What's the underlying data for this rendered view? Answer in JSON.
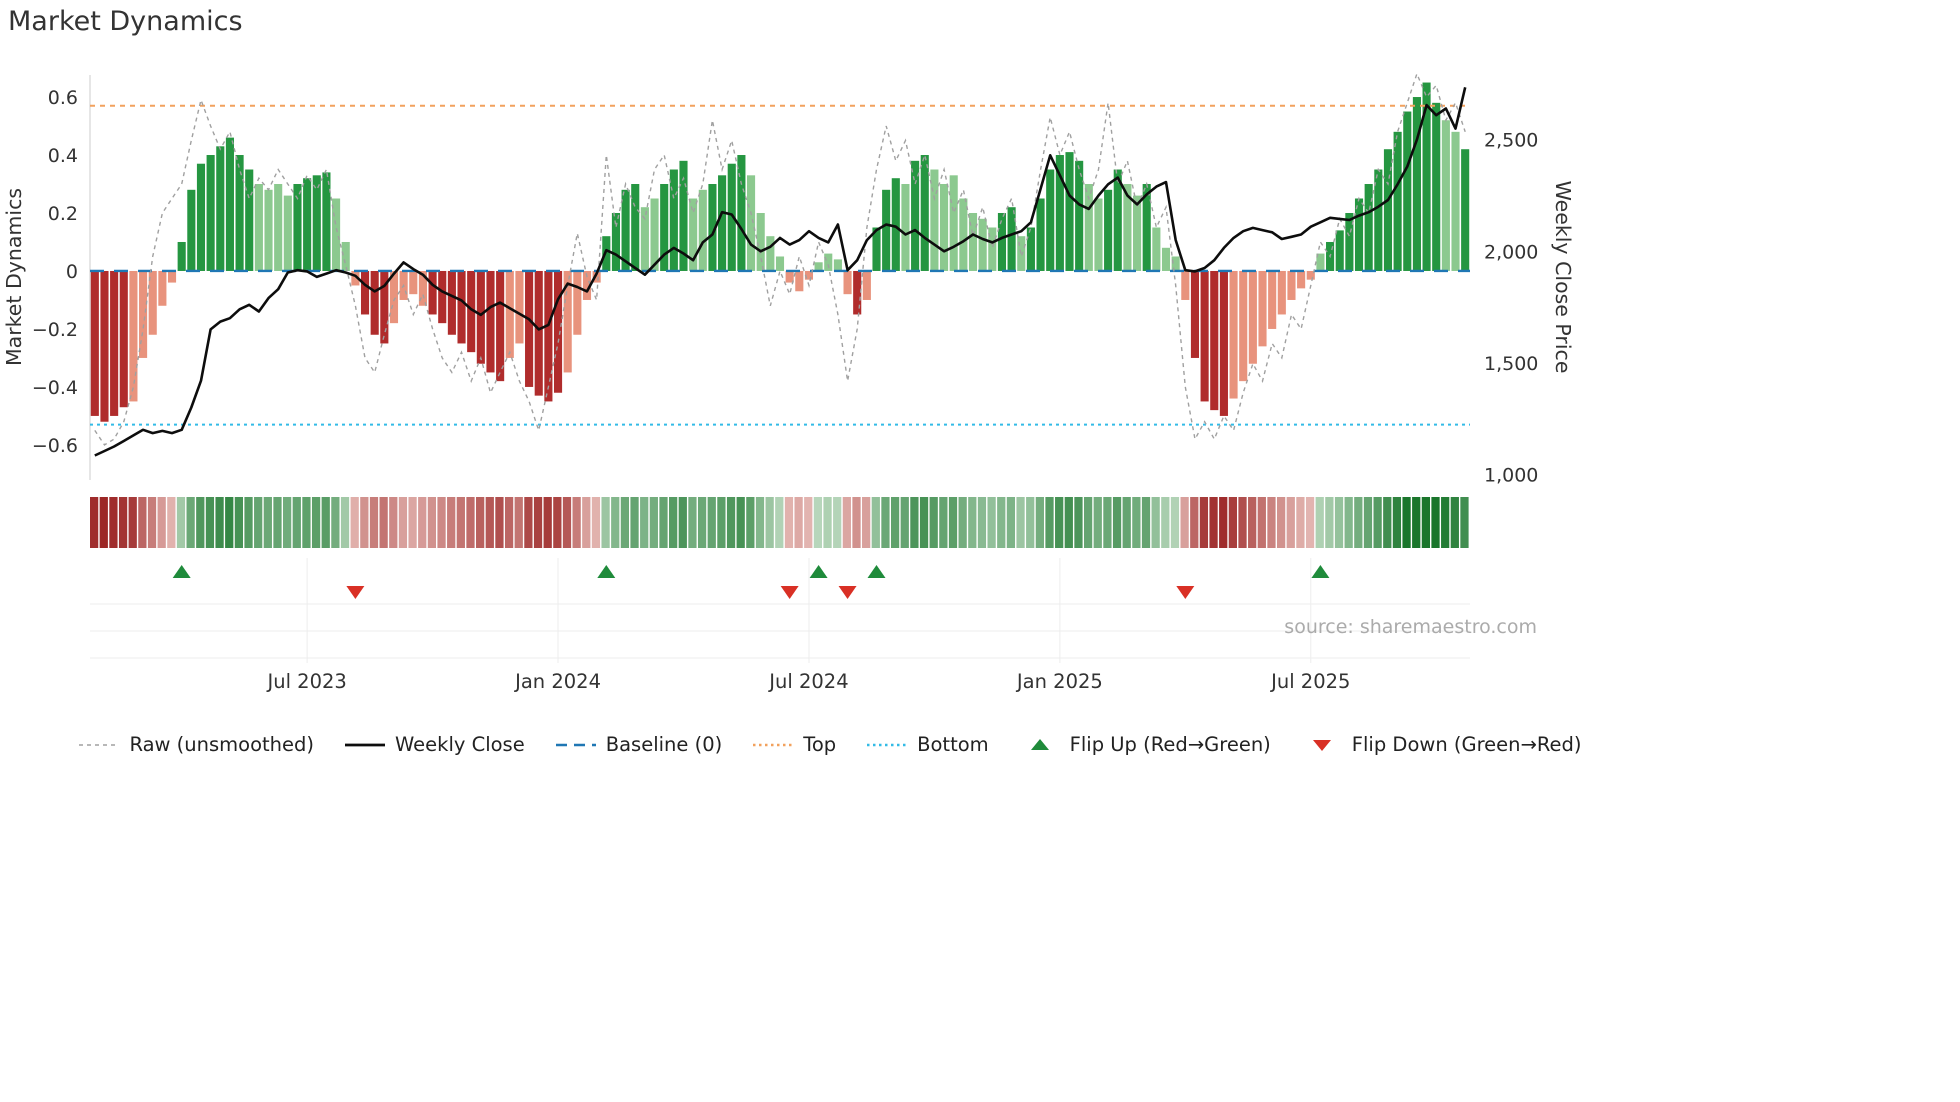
{
  "title": "Market Dynamics",
  "source": "source: sharemaestro.com",
  "axes": {
    "left": {
      "title": "Market Dynamics",
      "ticks": [
        0.6,
        0.4,
        0.2,
        0,
        -0.2,
        -0.4,
        -0.6
      ],
      "tick_labels": [
        "0.6",
        "0.4",
        "0.2",
        "0",
        "−0.2",
        "−0.4",
        "−0.6"
      ]
    },
    "right": {
      "title": "Weekly Close Price",
      "ticks": [
        2500,
        2000,
        1500,
        1000
      ],
      "tick_labels": [
        "2,500",
        "2,000",
        "1,500",
        "1,000"
      ]
    },
    "x": {
      "tick_weeks": [
        22,
        48,
        74,
        100,
        126
      ],
      "tick_labels": [
        "Jul 2023",
        "Jan 2024",
        "Jul 2024",
        "Jan 2025",
        "Jul 2025"
      ]
    }
  },
  "legend": {
    "items": [
      {
        "key": "raw",
        "label": "Raw (unsmoothed)",
        "type": "dashed-line",
        "color": "#a0a0a0"
      },
      {
        "key": "weekly-close",
        "label": "Weekly Close",
        "type": "solid-line",
        "color": "#0d0d0d"
      },
      {
        "key": "baseline",
        "label": "Baseline (0)",
        "type": "long-dash-line",
        "color": "#1f77b4"
      },
      {
        "key": "top",
        "label": "Top",
        "type": "dotted-line",
        "color": "#f2a15d"
      },
      {
        "key": "bottom",
        "label": "Bottom",
        "type": "dotted-line",
        "color": "#33bbe6"
      },
      {
        "key": "flip-up",
        "label": "Flip Up (Red→Green)",
        "type": "triangle-up",
        "color": "#1f8b3b"
      },
      {
        "key": "flip-down",
        "label": "Flip Down (Green→Red)",
        "type": "triangle-down",
        "color": "#d93025"
      }
    ]
  },
  "chart_data": {
    "type": "bar+line weekly combo with heatmap strip and flip markers",
    "baseline": 0,
    "top": 0.57,
    "bottom": -0.53,
    "left_ylim": [
      -0.721,
      0.676
    ],
    "right_ylim": [
      975,
      2790
    ],
    "weeks": 143,
    "oscillator": [
      -0.5,
      -0.52,
      -0.5,
      -0.47,
      -0.45,
      -0.3,
      -0.22,
      -0.12,
      -0.04,
      0.1,
      0.28,
      0.37,
      0.4,
      0.43,
      0.46,
      0.4,
      0.35,
      0.3,
      0.28,
      0.3,
      0.26,
      0.3,
      0.32,
      0.33,
      0.34,
      0.25,
      0.1,
      -0.05,
      -0.15,
      -0.22,
      -0.25,
      -0.18,
      -0.1,
      -0.08,
      -0.12,
      -0.15,
      -0.18,
      -0.22,
      -0.25,
      -0.28,
      -0.32,
      -0.35,
      -0.38,
      -0.3,
      -0.25,
      -0.4,
      -0.43,
      -0.45,
      -0.42,
      -0.35,
      -0.22,
      -0.1,
      -0.04,
      0.12,
      0.2,
      0.28,
      0.3,
      0.22,
      0.25,
      0.3,
      0.35,
      0.38,
      0.25,
      0.28,
      0.3,
      0.33,
      0.37,
      0.4,
      0.33,
      0.2,
      0.12,
      0.05,
      -0.04,
      -0.07,
      -0.03,
      0.03,
      0.06,
      0.04,
      -0.08,
      -0.15,
      -0.1,
      0.15,
      0.28,
      0.32,
      0.3,
      0.38,
      0.4,
      0.35,
      0.3,
      0.33,
      0.25,
      0.2,
      0.18,
      0.15,
      0.2,
      0.22,
      0.12,
      0.15,
      0.25,
      0.35,
      0.4,
      0.41,
      0.38,
      0.3,
      0.25,
      0.28,
      0.35,
      0.3,
      0.26,
      0.3,
      0.15,
      0.08,
      0.05,
      -0.1,
      -0.3,
      -0.45,
      -0.48,
      -0.5,
      -0.44,
      -0.38,
      -0.32,
      -0.26,
      -0.2,
      -0.15,
      -0.1,
      -0.06,
      -0.03,
      0.06,
      0.1,
      0.14,
      0.2,
      0.25,
      0.3,
      0.35,
      0.42,
      0.48,
      0.55,
      0.6,
      0.65,
      0.58,
      0.52,
      0.48,
      0.42
    ],
    "bar_colors": [
      "dr",
      "dr",
      "dr",
      "dr",
      "lr",
      "lr",
      "lr",
      "lr",
      "lr",
      "dg",
      "dg",
      "dg",
      "dg",
      "dg",
      "dg",
      "dg",
      "dg",
      "lg",
      "lg",
      "lg",
      "lg",
      "dg",
      "dg",
      "dg",
      "dg",
      "lg",
      "lg",
      "lr",
      "dr",
      "dr",
      "dr",
      "lr",
      "lr",
      "lr",
      "lr",
      "dr",
      "dr",
      "dr",
      "dr",
      "dr",
      "dr",
      "dr",
      "dr",
      "lr",
      "lr",
      "dr",
      "dr",
      "dr",
      "dr",
      "lr",
      "lr",
      "lr",
      "lr",
      "dg",
      "dg",
      "dg",
      "dg",
      "lg",
      "lg",
      "dg",
      "dg",
      "dg",
      "lg",
      "lg",
      "dg",
      "dg",
      "dg",
      "dg",
      "lg",
      "lg",
      "lg",
      "lg",
      "lr",
      "lr",
      "lr",
      "lg",
      "lg",
      "lg",
      "lr",
      "dr",
      "lr",
      "dg",
      "dg",
      "dg",
      "lg",
      "dg",
      "dg",
      "lg",
      "lg",
      "lg",
      "lg",
      "lg",
      "lg",
      "lg",
      "dg",
      "dg",
      "lg",
      "dg",
      "dg",
      "dg",
      "dg",
      "dg",
      "dg",
      "lg",
      "lg",
      "dg",
      "dg",
      "lg",
      "lg",
      "dg",
      "lg",
      "lg",
      "lg",
      "lr",
      "dr",
      "dr",
      "dr",
      "dr",
      "lr",
      "lr",
      "lr",
      "lr",
      "lr",
      "lr",
      "lr",
      "lr",
      "lr",
      "lg",
      "dg",
      "dg",
      "dg",
      "dg",
      "dg",
      "dg",
      "dg",
      "dg",
      "dg",
      "dg",
      "dg",
      "dg",
      "lg",
      "lg",
      "dg"
    ],
    "raw": [
      -0.55,
      -0.6,
      -0.58,
      -0.52,
      -0.4,
      -0.2,
      0.05,
      0.2,
      0.25,
      0.3,
      0.45,
      0.59,
      0.5,
      0.42,
      0.48,
      0.35,
      0.25,
      0.32,
      0.28,
      0.35,
      0.3,
      0.25,
      0.33,
      0.28,
      0.35,
      0.15,
      0.02,
      -0.12,
      -0.3,
      -0.35,
      -0.22,
      -0.1,
      -0.05,
      -0.15,
      -0.08,
      -0.2,
      -0.3,
      -0.35,
      -0.28,
      -0.38,
      -0.3,
      -0.42,
      -0.35,
      -0.28,
      -0.38,
      -0.45,
      -0.55,
      -0.4,
      -0.25,
      -0.05,
      0.13,
      -0.02,
      -0.1,
      0.4,
      0.15,
      0.3,
      0.22,
      0.18,
      0.35,
      0.4,
      0.25,
      0.32,
      0.2,
      0.3,
      0.52,
      0.35,
      0.45,
      0.3,
      0.2,
      0.05,
      -0.12,
      0.0,
      -0.08,
      0.05,
      -0.05,
      0.1,
      0.02,
      -0.15,
      -0.38,
      -0.2,
      0.15,
      0.35,
      0.5,
      0.38,
      0.45,
      0.3,
      0.4,
      0.25,
      0.35,
      0.2,
      0.28,
      0.12,
      0.22,
      0.08,
      0.18,
      0.25,
      0.05,
      0.15,
      0.35,
      0.53,
      0.4,
      0.48,
      0.35,
      0.25,
      0.35,
      0.58,
      0.3,
      0.38,
      0.22,
      0.3,
      0.15,
      0.22,
      -0.05,
      -0.4,
      -0.58,
      -0.52,
      -0.58,
      -0.5,
      -0.55,
      -0.42,
      -0.32,
      -0.38,
      -0.25,
      -0.3,
      -0.15,
      -0.2,
      -0.05,
      0.1,
      0.05,
      0.18,
      0.12,
      0.25,
      0.2,
      0.35,
      0.3,
      0.48,
      0.58,
      0.68,
      0.6,
      0.64,
      0.52,
      0.58,
      0.48
    ],
    "close": [
      1085,
      1105,
      1125,
      1150,
      1175,
      1200,
      1185,
      1195,
      1185,
      1200,
      1300,
      1420,
      1650,
      1685,
      1700,
      1740,
      1760,
      1730,
      1790,
      1830,
      1905,
      1915,
      1910,
      1885,
      1900,
      1915,
      1905,
      1890,
      1850,
      1820,
      1845,
      1900,
      1950,
      1920,
      1895,
      1850,
      1820,
      1800,
      1780,
      1740,
      1715,
      1750,
      1770,
      1745,
      1720,
      1695,
      1650,
      1670,
      1785,
      1855,
      1840,
      1820,
      1900,
      2005,
      1985,
      1955,
      1925,
      1895,
      1940,
      1985,
      2015,
      1990,
      1960,
      2040,
      2075,
      2175,
      2165,
      2100,
      2030,
      2000,
      2020,
      2060,
      2030,
      2050,
      2090,
      2060,
      2040,
      2120,
      1915,
      1960,
      2050,
      2095,
      2120,
      2110,
      2075,
      2095,
      2060,
      2030,
      2000,
      2020,
      2045,
      2075,
      2055,
      2040,
      2060,
      2075,
      2090,
      2130,
      2280,
      2430,
      2340,
      2250,
      2210,
      2190,
      2250,
      2300,
      2330,
      2250,
      2210,
      2255,
      2290,
      2310,
      2050,
      1915,
      1910,
      1925,
      1960,
      2015,
      2060,
      2090,
      2105,
      2095,
      2085,
      2055,
      2065,
      2075,
      2110,
      2130,
      2150,
      2145,
      2140,
      2160,
      2175,
      2200,
      2230,
      2300,
      2380,
      2500,
      2655,
      2610,
      2640,
      2550,
      2735
    ],
    "flip_up_weeks": [
      9,
      53,
      75,
      81,
      127
    ],
    "flip_down_weeks": [
      27,
      72,
      78,
      113
    ],
    "colors": {
      "dark_red": "#b02c2c",
      "light_red": "#e8937d",
      "dark_green": "#259641",
      "light_green": "#8cc98f",
      "close": "#0d0d0d",
      "raw": "#a0a0a0",
      "baseline": "#1f77b4",
      "top": "#f2a15d",
      "bottom": "#33bbe6",
      "flip_up": "#1f8b3b",
      "flip_down": "#d93025"
    }
  }
}
